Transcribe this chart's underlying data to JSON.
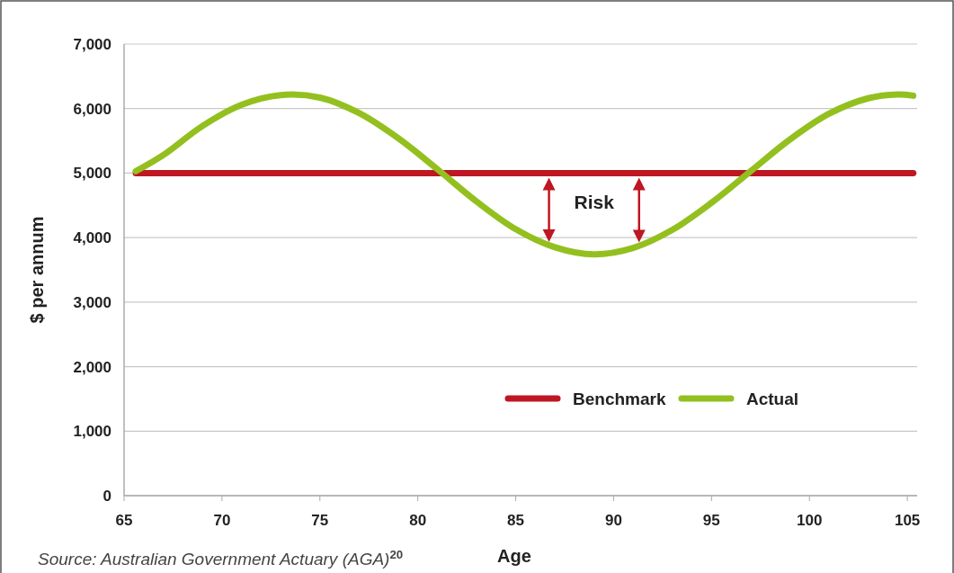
{
  "chart_data": {
    "type": "line",
    "xlabel": "Age",
    "ylabel": "$ per annum",
    "xlim": [
      65,
      105.5
    ],
    "xticks": [
      65,
      70,
      75,
      80,
      85,
      90,
      95,
      100,
      105
    ],
    "ylim": [
      0,
      7000
    ],
    "yticks": [
      {
        "value": 0,
        "label": "0"
      },
      {
        "value": 1000,
        "label": "1,000"
      },
      {
        "value": 2000,
        "label": "2,000"
      },
      {
        "value": 3000,
        "label": "3,000"
      },
      {
        "value": 4000,
        "label": "4,000"
      },
      {
        "value": 5000,
        "label": "5,000"
      },
      {
        "value": 6000,
        "label": "6,000"
      },
      {
        "value": 7000,
        "label": "7,000"
      }
    ],
    "grid": "y",
    "legend": "bottom right",
    "marker": "none",
    "line_style": "solid",
    "series": [
      {
        "name": "Benchmark",
        "color": "#be1622",
        "x": [
          65.6,
          105.3
        ],
        "values": [
          5000,
          5000
        ]
      },
      {
        "name": "Actual",
        "color": "#93c01f",
        "x": [
          65.6,
          67,
          69,
          71,
          73,
          75,
          77,
          79,
          81,
          83,
          85,
          87,
          89,
          91,
          93,
          95,
          97,
          99,
          101,
          103,
          104.5,
          105.3
        ],
        "values": [
          5030,
          5280,
          5730,
          6060,
          6210,
          6170,
          5930,
          5540,
          5060,
          4560,
          4130,
          3850,
          3740,
          3840,
          4120,
          4540,
          5030,
          5520,
          5920,
          6160,
          6220,
          6200
        ]
      }
    ],
    "annotations": [
      "Risk",
      "Source: Australian Government Actuary (AGA)$^{20}$"
    ]
  }
}
